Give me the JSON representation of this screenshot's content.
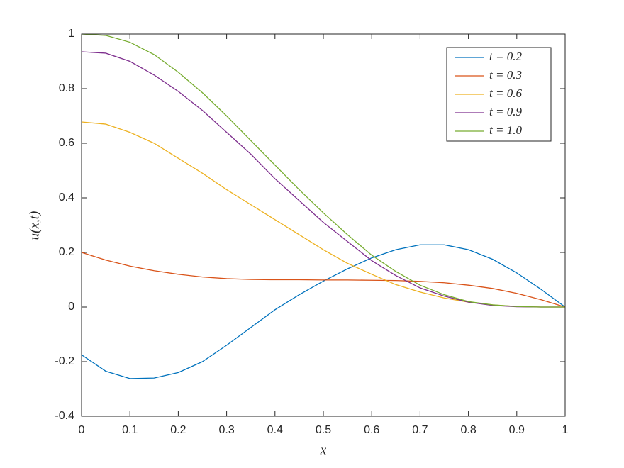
{
  "chart_data": {
    "type": "line",
    "xlabel": "x",
    "ylabel": "u(x,t)",
    "x": [
      0,
      0.05,
      0.1,
      0.15,
      0.2,
      0.25,
      0.3,
      0.35,
      0.4,
      0.45,
      0.5,
      0.55,
      0.6,
      0.65,
      0.7,
      0.75,
      0.8,
      0.85,
      0.9,
      0.95,
      1
    ],
    "series": [
      {
        "name": "t = 0.2",
        "color": "#0072BD",
        "values": [
          -0.175,
          -0.235,
          -0.262,
          -0.26,
          -0.24,
          -0.2,
          -0.14,
          -0.075,
          -0.01,
          0.045,
          0.095,
          0.14,
          0.18,
          0.21,
          0.228,
          0.228,
          0.21,
          0.175,
          0.125,
          0.065,
          0
        ]
      },
      {
        "name": "t = 0.3",
        "color": "#D95319",
        "values": [
          0.2,
          0.172,
          0.15,
          0.133,
          0.12,
          0.11,
          0.104,
          0.101,
          0.1,
          0.1,
          0.099,
          0.099,
          0.098,
          0.097,
          0.094,
          0.089,
          0.08,
          0.068,
          0.05,
          0.027,
          0
        ]
      },
      {
        "name": "t = 0.6",
        "color": "#EDB120",
        "values": [
          0.678,
          0.67,
          0.64,
          0.6,
          0.545,
          0.49,
          0.43,
          0.375,
          0.32,
          0.265,
          0.21,
          0.16,
          0.12,
          0.082,
          0.055,
          0.033,
          0.018,
          0.008,
          0.002,
          0,
          0
        ]
      },
      {
        "name": "t = 0.9",
        "color": "#7E2F8E",
        "values": [
          0.935,
          0.93,
          0.9,
          0.85,
          0.79,
          0.72,
          0.64,
          0.56,
          0.47,
          0.39,
          0.31,
          0.24,
          0.17,
          0.115,
          0.07,
          0.04,
          0.018,
          0.006,
          0.001,
          0,
          0
        ]
      },
      {
        "name": "t = 1.0",
        "color": "#77AC30",
        "values": [
          1,
          0.995,
          0.97,
          0.925,
          0.86,
          0.785,
          0.7,
          0.61,
          0.52,
          0.43,
          0.345,
          0.265,
          0.19,
          0.13,
          0.08,
          0.045,
          0.02,
          0.008,
          0.002,
          0,
          0
        ]
      }
    ],
    "xlim": [
      0,
      1
    ],
    "xticks": [
      0,
      0.1,
      0.2,
      0.3,
      0.4,
      0.5,
      0.6,
      0.7,
      0.8,
      0.9,
      1
    ],
    "ylim": [
      -0.4,
      1
    ],
    "yticks": [
      -0.4,
      -0.2,
      0,
      0.2,
      0.4,
      0.6,
      0.8,
      1
    ],
    "legend": "upper right"
  }
}
